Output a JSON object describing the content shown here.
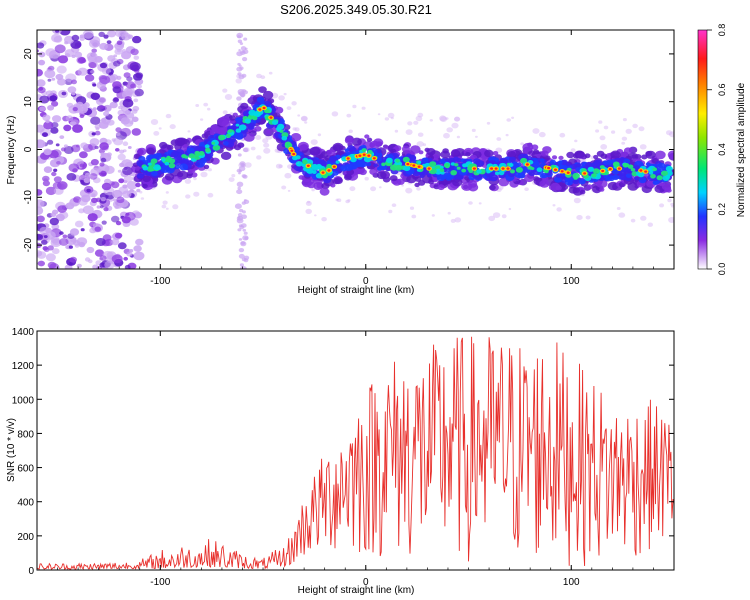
{
  "page_title": "S206.2025.349.05.30.R21",
  "chart_data": [
    {
      "type": "heatmap",
      "title": "S206.2025.349.05.30.R21",
      "xlabel": "Height of straight line (km)",
      "ylabel": "Frequency (Hz)",
      "xlim": [
        -160,
        150
      ],
      "ylim": [
        -25,
        25
      ],
      "xticks": [
        -100,
        0,
        100
      ],
      "yticks": [
        -20,
        -10,
        0,
        10,
        20
      ],
      "colorbar": {
        "label": "Normalized spectral amplitude",
        "range": [
          0.0,
          0.8
        ],
        "ticks": [
          "0.0",
          "0.2",
          "0.4",
          "0.6",
          "0.8"
        ]
      },
      "ridge": {
        "x": [
          -110,
          -100,
          -90,
          -80,
          -70,
          -60,
          -50,
          -45,
          -40,
          -35,
          -30,
          -20,
          -10,
          0,
          10,
          20,
          30,
          40,
          50,
          60,
          70,
          80,
          90,
          100,
          110,
          120,
          130,
          140,
          150
        ],
        "y": [
          -4,
          -3,
          -2,
          -1,
          2,
          5,
          9,
          6,
          3,
          -1,
          -3,
          -5,
          -2,
          -1,
          -3,
          -3,
          -4,
          -4,
          -4,
          -4,
          -4,
          -3,
          -4,
          -5,
          -5,
          -4,
          -4,
          -5,
          -5
        ]
      }
    },
    {
      "type": "line",
      "xlabel": "Height of straight line (km)",
      "ylabel": "SNR (10 * v/v)",
      "xlim": [
        -160,
        150
      ],
      "ylim": [
        0,
        1400
      ],
      "xticks": [
        -100,
        0,
        100
      ],
      "yticks": [
        0,
        200,
        400,
        600,
        800,
        1000,
        1200,
        1400
      ],
      "series": [
        {
          "name": "SNR",
          "color": "#e8302c",
          "envelope_x": [
            -160,
            -130,
            -110,
            -95,
            -85,
            -78,
            -70,
            -60,
            -50,
            -40,
            -35,
            -30,
            -20,
            -10,
            0,
            10,
            20,
            30,
            40,
            50,
            60,
            70,
            80,
            90,
            100,
            110,
            120,
            130,
            140,
            150
          ],
          "envelope_max": [
            40,
            45,
            60,
            150,
            160,
            190,
            170,
            100,
            70,
            150,
            260,
            450,
            700,
            900,
            1100,
            1250,
            1300,
            1300,
            1400,
            1380,
            1400,
            1380,
            1350,
            1400,
            1250,
            1150,
            1000,
            1000,
            1000,
            900
          ],
          "envelope_min": [
            5,
            5,
            8,
            10,
            15,
            20,
            15,
            10,
            8,
            20,
            40,
            60,
            80,
            100,
            50,
            60,
            40,
            30,
            30,
            20,
            20,
            20,
            20,
            20,
            20,
            20,
            50,
            50,
            100,
            150
          ]
        }
      ]
    }
  ]
}
